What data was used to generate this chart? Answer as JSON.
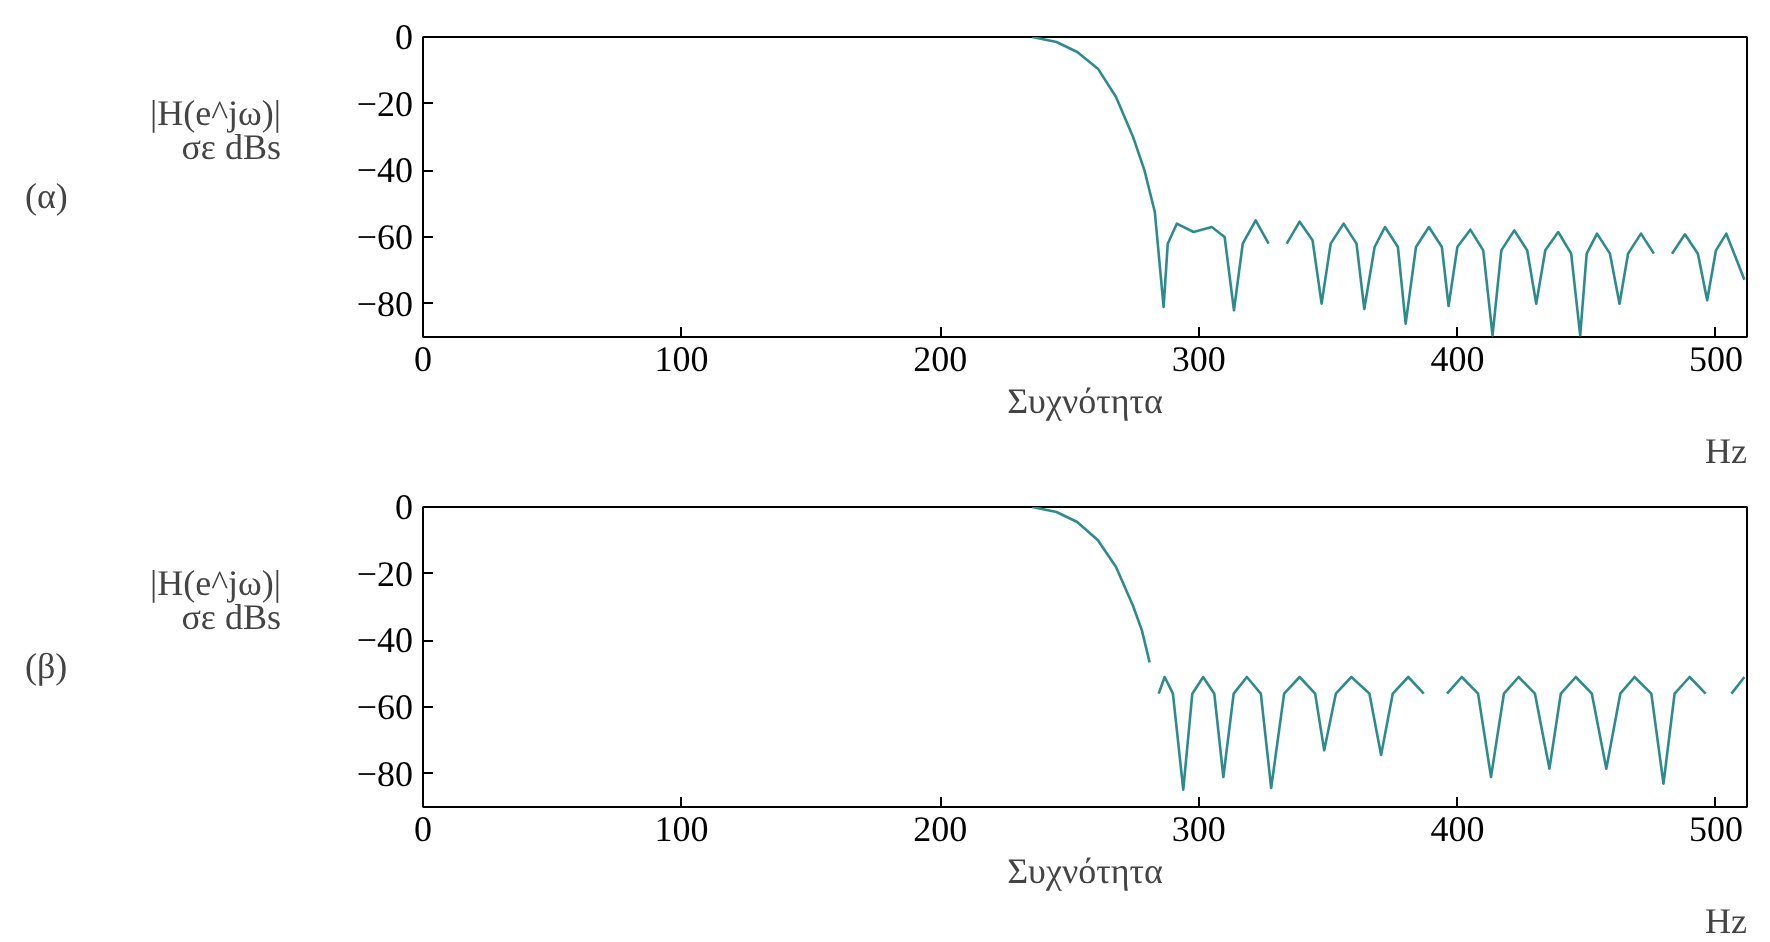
{
  "chart_data": [
    {
      "type": "line",
      "xlabel": "Συχνότητα",
      "ylabel": "|H(e^jω)|\nσε dBs",
      "annotations": [
        "(α)",
        "Hz"
      ],
      "xlim": [
        0,
        512
      ],
      "ylim": [
        -90,
        0
      ],
      "xticks": [
        0,
        100,
        200,
        300,
        400,
        500
      ],
      "yticks": [
        {
          "value": 0,
          "label": "0"
        },
        {
          "value": -20,
          "label": "−20"
        },
        {
          "value": -40,
          "label": "−40"
        },
        {
          "value": -60,
          "label": "−60"
        },
        {
          "value": -80,
          "label": "−80"
        }
      ],
      "grid": false,
      "series": [
        {
          "color": "#2e8b8b",
          "x": [
            235.6,
            245,
            253,
            261,
            268,
            274.6,
            279,
            283,
            286.4,
            288,
            291.5,
            298,
            305,
            310,
            313.6,
            317,
            322,
            327,
            330.5,
            334,
            339,
            344,
            347.5,
            351,
            356,
            361,
            364,
            368,
            372,
            377,
            380,
            384,
            389,
            394,
            396.6,
            400,
            405,
            410,
            413.6,
            417,
            422,
            427,
            430.5,
            434,
            439,
            444,
            447.5,
            450,
            454,
            459,
            462.7,
            466,
            471,
            476,
            479.7,
            483,
            488,
            493,
            496.6,
            500,
            504,
            511
          ],
          "values": [
            0,
            -1.5,
            -4.5,
            -9.5,
            -18,
            -30,
            -40,
            -52.5,
            -81,
            -62,
            -56,
            -58.5,
            -57,
            -60,
            -82,
            -62,
            -55,
            -62,
            null,
            -62,
            -55.4,
            -61,
            -80,
            -62,
            -56,
            -62,
            -81.6,
            -63,
            -57,
            -63,
            -86,
            -63,
            -57,
            -63,
            -80.7,
            -63,
            -57.8,
            -64,
            -89.5,
            -64,
            -58,
            -64,
            -80,
            -64,
            -58.5,
            -65,
            -89.5,
            -65,
            -59,
            -65,
            -80,
            -65,
            -59,
            -65,
            null,
            -65,
            -59.2,
            -65,
            -79,
            -64,
            -59,
            -72.8
          ]
        }
      ]
    },
    {
      "type": "line",
      "xlabel": "Συχνότητα",
      "ylabel": "|H(e^jω)|\nσε dBs",
      "annotations": [
        "(β)",
        "Hz"
      ],
      "xlim": [
        0,
        512
      ],
      "ylim": [
        -90,
        0
      ],
      "xticks": [
        0,
        100,
        200,
        300,
        400,
        500
      ],
      "yticks": [
        {
          "value": 0,
          "label": "0"
        },
        {
          "value": -20,
          "label": "−20"
        },
        {
          "value": -40,
          "label": "−40"
        },
        {
          "value": -60,
          "label": "−60"
        },
        {
          "value": -80,
          "label": "−80"
        }
      ],
      "grid": false,
      "series": [
        {
          "color": "#2e8b8b",
          "x": [
            235.6,
            245,
            253,
            261,
            268,
            274.6,
            278,
            281,
            283,
            284.5,
            286.8,
            290,
            294,
            297.5,
            301.7,
            306,
            309.5,
            313.5,
            318.6,
            324,
            328,
            333,
            339,
            345,
            348.5,
            353,
            359,
            366,
            370.5,
            375,
            381,
            387,
            391.5,
            396,
            401.7,
            408,
            413,
            418,
            423.7,
            430,
            435.6,
            440,
            445.8,
            452,
            457.6,
            463,
            468.5,
            475,
            479.7,
            484,
            489.8,
            496,
            501.7,
            506,
            511
          ],
          "values": [
            0,
            -1.5,
            -4.5,
            -10,
            -18,
            -29.7,
            -37,
            -46.6,
            null,
            -56,
            -51,
            -56,
            -84.8,
            -56,
            -51,
            -56,
            -81,
            -56,
            -51,
            -56,
            -84.3,
            -56,
            -51,
            -56,
            -73,
            -56,
            -51,
            -56,
            -74.4,
            -56,
            -51,
            -56,
            null,
            -56,
            -51,
            -56,
            -81,
            -56,
            -51,
            -56,
            -78.5,
            -56,
            -51,
            -56,
            -78.5,
            -56,
            -51,
            -56,
            -83,
            -56,
            -51,
            -56,
            null,
            -56,
            -51
          ]
        }
      ]
    }
  ]
}
